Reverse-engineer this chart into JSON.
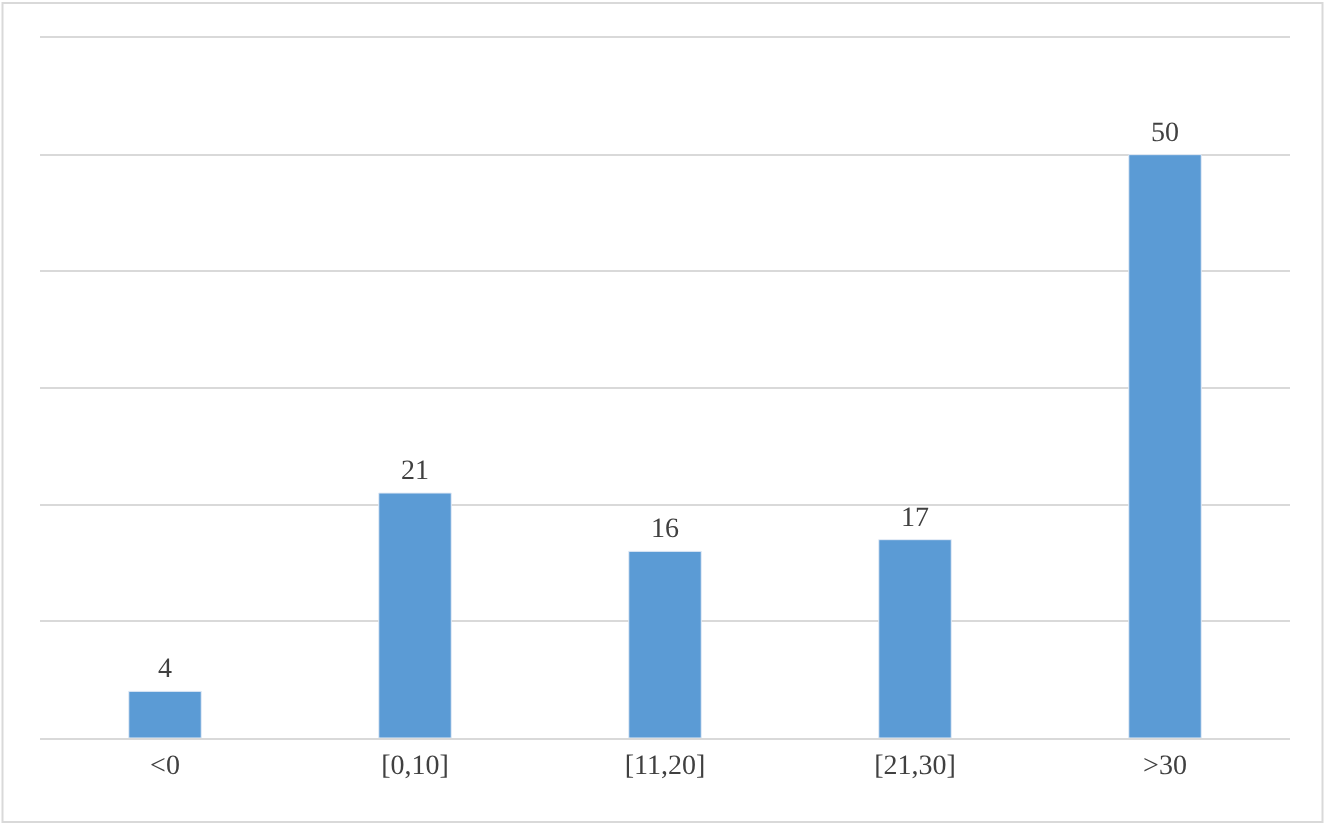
{
  "chart_data": {
    "type": "bar",
    "categories": [
      "<0",
      "[0,10]",
      "[11,20]",
      "[21,30]",
      ">30"
    ],
    "values": [
      4,
      21,
      16,
      17,
      50
    ],
    "color": "#5b9bd5",
    "data_labels": true,
    "ylim": [
      0,
      60
    ],
    "yticks": [
      {
        "value": 0,
        "label": null
      },
      {
        "value": 10,
        "label": null
      },
      {
        "value": 20,
        "label": null
      },
      {
        "value": 30,
        "label": null
      },
      {
        "value": 40,
        "label": null
      },
      {
        "value": 50,
        "label": null
      },
      {
        "value": 60,
        "label": null
      }
    ],
    "grid": "y",
    "tick_labels": "x",
    "legend": false
  }
}
